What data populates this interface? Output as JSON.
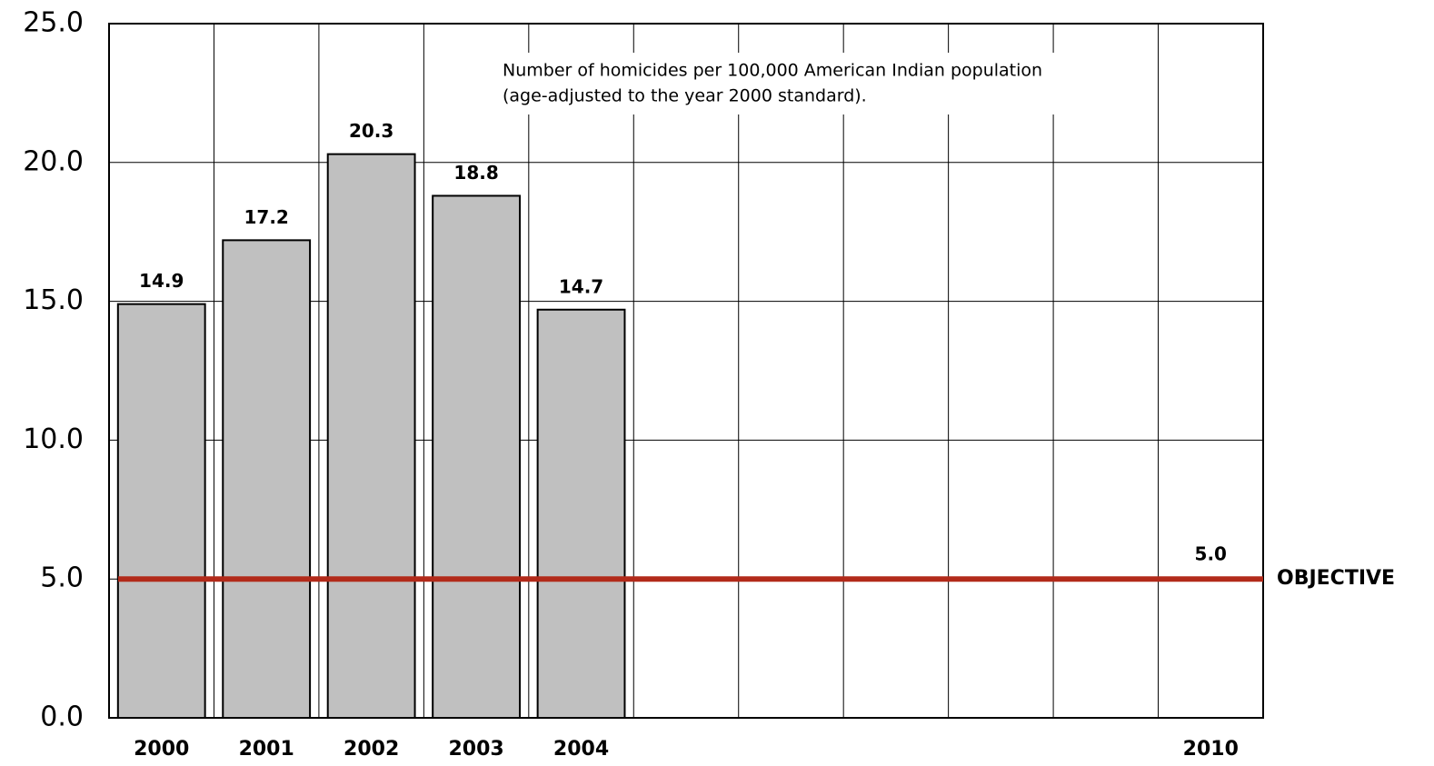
{
  "chart_data": {
    "type": "bar",
    "annotation": [
      "Number of homicides per 100,000 American Indian population",
      "(age-adjusted to the year 2000 standard)."
    ],
    "categories": [
      "2000",
      "2001",
      "2002",
      "2003",
      "2004",
      null,
      null,
      null,
      null,
      null,
      "2010"
    ],
    "values": [
      14.9,
      17.2,
      20.3,
      18.8,
      14.7,
      null,
      null,
      null,
      null,
      null,
      null
    ],
    "color": "#c0c0c0",
    "ylim": [
      0,
      25
    ],
    "yticks": [
      {
        "value": 0,
        "label": "0.0"
      },
      {
        "value": 5,
        "label": "5.0"
      },
      {
        "value": 10,
        "label": "10.0"
      },
      {
        "value": 15,
        "label": "15.0"
      },
      {
        "value": 20,
        "label": "20.0"
      },
      {
        "value": 25,
        "label": "25.0"
      }
    ],
    "grid": true,
    "objective": {
      "name": "OBJECTIVE",
      "value": 5,
      "label": "5.0",
      "color": "#b22a1a"
    }
  }
}
